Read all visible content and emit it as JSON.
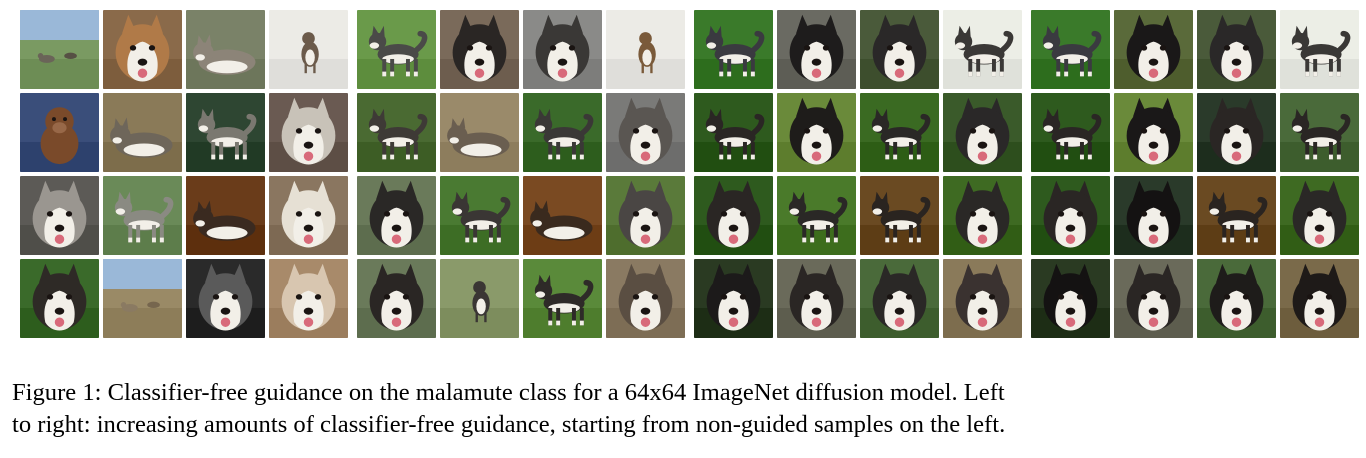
{
  "figure": {
    "caption_lines": [
      "Figure 1: Classifier-free guidance on the malamute class for a 64x64 ImageNet diffusion model. Left",
      "to right: increasing amounts of classifier-free guidance, starting from non-guided samples on the left."
    ],
    "panels": [
      {
        "images": [
          {
            "bg": "#7a9a62",
            "fur": "#6a6458",
            "kind": "field"
          },
          {
            "bg": "#8a6a4a",
            "fur": "#b07a48",
            "kind": "face"
          },
          {
            "bg": "#7a8268",
            "fur": "#8c8478",
            "kind": "lying"
          },
          {
            "bg": "#ecebe6",
            "fur": "#6b5a4a",
            "kind": "small"
          },
          {
            "bg": "#3a4e7a",
            "fur": "#7a4a2a",
            "kind": "sit"
          },
          {
            "bg": "#8a7a58",
            "fur": "#6e665a",
            "kind": "lying"
          },
          {
            "bg": "#2e4632",
            "fur": "#7a7870",
            "kind": "stand"
          },
          {
            "bg": "#6a5a52",
            "fur": "#c8c2b8",
            "kind": "face"
          },
          {
            "bg": "#5c5a56",
            "fur": "#9a9690",
            "kind": "face"
          },
          {
            "bg": "#6a8a58",
            "fur": "#8a8a82",
            "kind": "stand"
          },
          {
            "bg": "#6a3c1a",
            "fur": "#3a2a20",
            "kind": "lying"
          },
          {
            "bg": "#8a7660",
            "fur": "#e6e0d4",
            "kind": "face"
          },
          {
            "bg": "#3a6a2a",
            "fur": "#2e2a26",
            "kind": "face"
          },
          {
            "bg": "#9a8a66",
            "fur": "#8a7a62",
            "kind": "field"
          },
          {
            "bg": "#2a2a2a",
            "fur": "#5a5a5a",
            "kind": "face"
          },
          {
            "bg": "#a88a6a",
            "fur": "#d8c6b0",
            "kind": "face"
          }
        ]
      },
      {
        "images": [
          {
            "bg": "#6a9a4a",
            "fur": "#4a4a48",
            "kind": "stand"
          },
          {
            "bg": "#7a6a5a",
            "fur": "#2a2624",
            "kind": "face"
          },
          {
            "bg": "#8a8a88",
            "fur": "#3a3836",
            "kind": "face"
          },
          {
            "bg": "#ecebe6",
            "fur": "#7a5a3a",
            "kind": "small"
          },
          {
            "bg": "#4a6a32",
            "fur": "#3e3a36",
            "kind": "stand"
          },
          {
            "bg": "#9a8a6a",
            "fur": "#6a5e50",
            "kind": "lying"
          },
          {
            "bg": "#3a6a2a",
            "fur": "#3a3836",
            "kind": "stand"
          },
          {
            "bg": "#7a7a78",
            "fur": "#5a5652",
            "kind": "face"
          },
          {
            "bg": "#6a7a5a",
            "fur": "#2a2826",
            "kind": "face"
          },
          {
            "bg": "#4a7a32",
            "fur": "#3a3634",
            "kind": "stand"
          },
          {
            "bg": "#7a4a22",
            "fur": "#3a2a1e",
            "kind": "lying"
          },
          {
            "bg": "#5a7a3a",
            "fur": "#4a4644",
            "kind": "face"
          },
          {
            "bg": "#6a7a5a",
            "fur": "#2a2624",
            "kind": "face"
          },
          {
            "bg": "#8a9a6a",
            "fur": "#3a3634",
            "kind": "small"
          },
          {
            "bg": "#5a8a3a",
            "fur": "#2e2a28",
            "kind": "stand"
          },
          {
            "bg": "#8a7a62",
            "fur": "#5a4e42",
            "kind": "face"
          }
        ]
      },
      {
        "images": [
          {
            "bg": "#3a7a2a",
            "fur": "#3a3a40",
            "kind": "stand"
          },
          {
            "bg": "#6a6a62",
            "fur": "#1e1c1c",
            "kind": "face"
          },
          {
            "bg": "#4a5a3a",
            "fur": "#2a2828",
            "kind": "face"
          },
          {
            "bg": "#eceee6",
            "fur": "#3a3836",
            "kind": "stand"
          },
          {
            "bg": "#2e5a1e",
            "fur": "#2a2624",
            "kind": "stand"
          },
          {
            "bg": "#6a8a3a",
            "fur": "#1e1c1a",
            "kind": "face"
          },
          {
            "bg": "#3a6a22",
            "fur": "#2a2826",
            "kind": "stand"
          },
          {
            "bg": "#3a5a2a",
            "fur": "#2a2828",
            "kind": "face"
          },
          {
            "bg": "#2e5a1e",
            "fur": "#2a2624",
            "kind": "face"
          },
          {
            "bg": "#4a7a2a",
            "fur": "#2a2826",
            "kind": "stand"
          },
          {
            "bg": "#6a4a22",
            "fur": "#2a2420",
            "kind": "stand"
          },
          {
            "bg": "#3e6a22",
            "fur": "#2a2826",
            "kind": "face"
          },
          {
            "bg": "#2a3a22",
            "fur": "#1c1a1a",
            "kind": "face"
          },
          {
            "bg": "#6a6a5a",
            "fur": "#2a2624",
            "kind": "face"
          },
          {
            "bg": "#4a6a3a",
            "fur": "#2a2826",
            "kind": "face"
          },
          {
            "bg": "#8a7a5a",
            "fur": "#3a3230",
            "kind": "face"
          }
        ]
      },
      {
        "images": [
          {
            "bg": "#3a7a2a",
            "fur": "#3a3a40",
            "kind": "stand"
          },
          {
            "bg": "#5a6a3a",
            "fur": "#1a1818",
            "kind": "face"
          },
          {
            "bg": "#4a5a3a",
            "fur": "#2a2828",
            "kind": "face"
          },
          {
            "bg": "#eceee6",
            "fur": "#3a3836",
            "kind": "stand"
          },
          {
            "bg": "#2e5a1e",
            "fur": "#2a2624",
            "kind": "stand"
          },
          {
            "bg": "#6a8a3a",
            "fur": "#1a1818",
            "kind": "face"
          },
          {
            "bg": "#2a3a2a",
            "fur": "#2a2624",
            "kind": "face"
          },
          {
            "bg": "#4a6a3a",
            "fur": "#2a2624",
            "kind": "stand"
          },
          {
            "bg": "#2e5a1e",
            "fur": "#2a2624",
            "kind": "face"
          },
          {
            "bg": "#2a3a2a",
            "fur": "#141212",
            "kind": "face"
          },
          {
            "bg": "#6a4a22",
            "fur": "#2a2420",
            "kind": "stand"
          },
          {
            "bg": "#3e6a22",
            "fur": "#2a2826",
            "kind": "face"
          },
          {
            "bg": "#2a3a22",
            "fur": "#141212",
            "kind": "face"
          },
          {
            "bg": "#6a6a5a",
            "fur": "#2a2624",
            "kind": "face"
          },
          {
            "bg": "#4a6a3a",
            "fur": "#1e1c1a",
            "kind": "face"
          },
          {
            "bg": "#7a6a4a",
            "fur": "#1e1a18",
            "kind": "face"
          }
        ]
      }
    ]
  }
}
